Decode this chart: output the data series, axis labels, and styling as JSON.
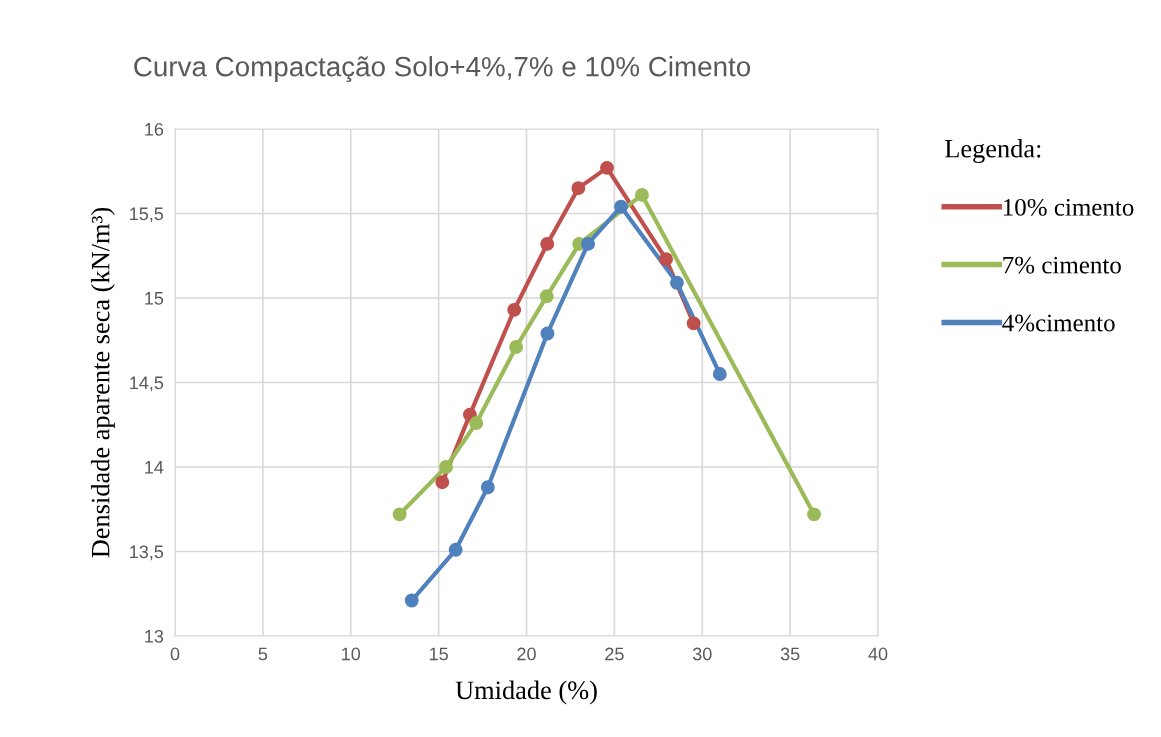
{
  "chart_data": {
    "type": "line",
    "title": "Curva Compactação Solo+4%,7% e 10% Cimento",
    "xlabel": "Umidade (%)",
    "ylabel": "Densidade aparente seca (kN/m³)",
    "legend_title": "Legenda:",
    "series": [
      {
        "name": "10% cimento",
        "color": "#c0504d",
        "x": [
          15.21,
          16.78,
          19.3,
          21.18,
          22.95,
          24.58,
          27.94,
          29.51
        ],
        "values": [
          13.91,
          14.31,
          14.93,
          15.32,
          15.65,
          15.77,
          15.23,
          14.85
        ]
      },
      {
        "name": "7% cimento",
        "color": "#9bbb59",
        "x": [
          12.78,
          15.42,
          17.14,
          19.41,
          21.15,
          23.0,
          26.57,
          36.36
        ],
        "values": [
          13.72,
          14.0,
          14.26,
          14.71,
          15.01,
          15.32,
          15.61,
          13.72
        ]
      },
      {
        "name": "4%cimento",
        "color": "#4f81bd",
        "x": [
          13.47,
          15.97,
          17.8,
          21.19,
          23.5,
          25.38,
          28.56,
          31.0
        ],
        "values": [
          13.21,
          13.51,
          13.88,
          14.79,
          15.32,
          15.54,
          15.09,
          14.55
        ]
      }
    ],
    "xlim": [
      0,
      40
    ],
    "xticks": [
      0,
      5,
      10,
      15,
      20,
      25,
      30,
      35,
      40
    ],
    "ylim": [
      13,
      16
    ],
    "yticks": [
      13,
      {
        "value": 13.5,
        "label": "13,5"
      },
      14,
      {
        "value": 14.5,
        "label": "14,5"
      },
      15,
      {
        "value": 15.5,
        "label": "15,5"
      },
      16
    ],
    "grid": true,
    "legend": "right",
    "marker": "circle",
    "line_style": "solid"
  }
}
